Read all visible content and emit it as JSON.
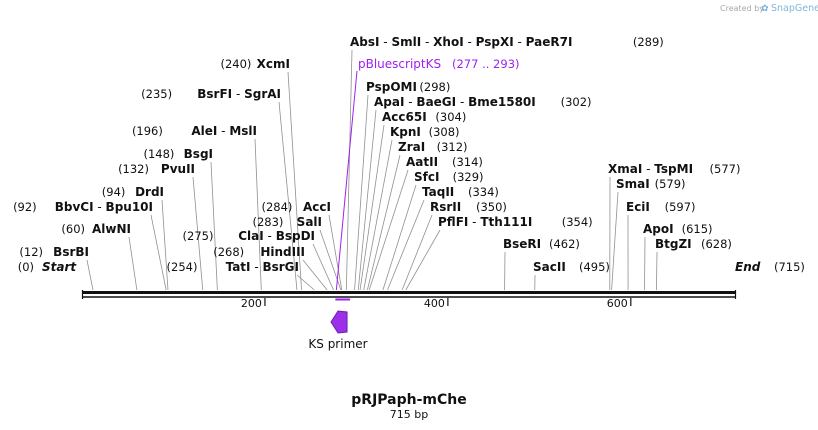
{
  "watermark": {
    "prefix": "Created by",
    "brand": "SnapGene"
  },
  "sequence": {
    "name": "pRJPaph-mChe",
    "length_label": "715 bp",
    "length": 715
  },
  "ruler": {
    "ticks": [
      200,
      400,
      600
    ]
  },
  "ends": {
    "start": {
      "pos": "(0)",
      "label": "Start"
    },
    "end": {
      "pos": "(715)",
      "label": "End"
    }
  },
  "feature": {
    "name": "pBluescriptKS",
    "range": "(277 .. 293)",
    "color": "#a020f0"
  },
  "primer": {
    "name": "KS primer",
    "color": "#9b30e8"
  },
  "sites": [
    {
      "id": "absi-group",
      "pos": "(289)",
      "names": [
        "AbsI",
        "SmlI",
        "XhoI",
        "PspXI",
        "PaeR7I"
      ]
    },
    {
      "id": "pspomi",
      "pos": "(298)",
      "names": [
        "PspOMI"
      ]
    },
    {
      "id": "apai-group",
      "pos": "(302)",
      "names": [
        "ApaI",
        "BaeGI",
        "Bme1580I"
      ]
    },
    {
      "id": "acc65i",
      "pos": "(304)",
      "names": [
        "Acc65I"
      ]
    },
    {
      "id": "kpni",
      "pos": "(308)",
      "names": [
        "KpnI"
      ]
    },
    {
      "id": "zrai",
      "pos": "(312)",
      "names": [
        "ZraI"
      ]
    },
    {
      "id": "aatii",
      "pos": "(314)",
      "names": [
        "AatII"
      ]
    },
    {
      "id": "sfci",
      "pos": "(329)",
      "names": [
        "SfcI"
      ]
    },
    {
      "id": "taqii",
      "pos": "(334)",
      "names": [
        "TaqII"
      ]
    },
    {
      "id": "rsrii",
      "pos": "(350)",
      "names": [
        "RsrII"
      ]
    },
    {
      "id": "pflfi-group",
      "pos": "(354)",
      "names": [
        "PflFI",
        "Tth111I"
      ]
    },
    {
      "id": "bseri",
      "pos": "(462)",
      "names": [
        "BseRI"
      ]
    },
    {
      "id": "sacii",
      "pos": "(495)",
      "names": [
        "SacII"
      ]
    },
    {
      "id": "xmai-group",
      "pos": "(577)",
      "names": [
        "XmaI",
        "TspMI"
      ]
    },
    {
      "id": "smai",
      "pos": "(579)",
      "names": [
        "SmaI"
      ]
    },
    {
      "id": "ecii",
      "pos": "(597)",
      "names": [
        "EciI"
      ]
    },
    {
      "id": "apoi",
      "pos": "(615)",
      "names": [
        "ApoI"
      ]
    },
    {
      "id": "btgzi",
      "pos": "(628)",
      "names": [
        "BtgZI"
      ]
    },
    {
      "id": "xcmi",
      "pos": "(240)",
      "names": [
        "XcmI"
      ]
    },
    {
      "id": "bsrfi-group",
      "pos": "(235)",
      "names": [
        "BsrFI",
        "SgrAI"
      ]
    },
    {
      "id": "alei-group",
      "pos": "(196)",
      "names": [
        "AleI",
        "MslI"
      ]
    },
    {
      "id": "bsgi",
      "pos": "(148)",
      "names": [
        "BsgI"
      ]
    },
    {
      "id": "pvuii",
      "pos": "(132)",
      "names": [
        "PvuII"
      ]
    },
    {
      "id": "drdi",
      "pos": "(94)",
      "names": [
        "DrdI"
      ]
    },
    {
      "id": "bbvci-group",
      "pos": "(92)",
      "names": [
        "BbvCI",
        "Bpu10I"
      ]
    },
    {
      "id": "alwni",
      "pos": "(60)",
      "names": [
        "AlwNI"
      ]
    },
    {
      "id": "bsrbi",
      "pos": "(12)",
      "names": [
        "BsrBI"
      ]
    },
    {
      "id": "acci",
      "pos": "(284)",
      "names": [
        "AccI"
      ]
    },
    {
      "id": "sali",
      "pos": "(283)",
      "names": [
        "SalI"
      ]
    },
    {
      "id": "clai-group",
      "pos": "(275)",
      "names": [
        "ClaI",
        "BspDI"
      ]
    },
    {
      "id": "hindiii",
      "pos": "(268)",
      "names": [
        "HindIII"
      ]
    },
    {
      "id": "tati-group",
      "pos": "(254)",
      "names": [
        "TatI",
        "BsrGI"
      ]
    }
  ]
}
